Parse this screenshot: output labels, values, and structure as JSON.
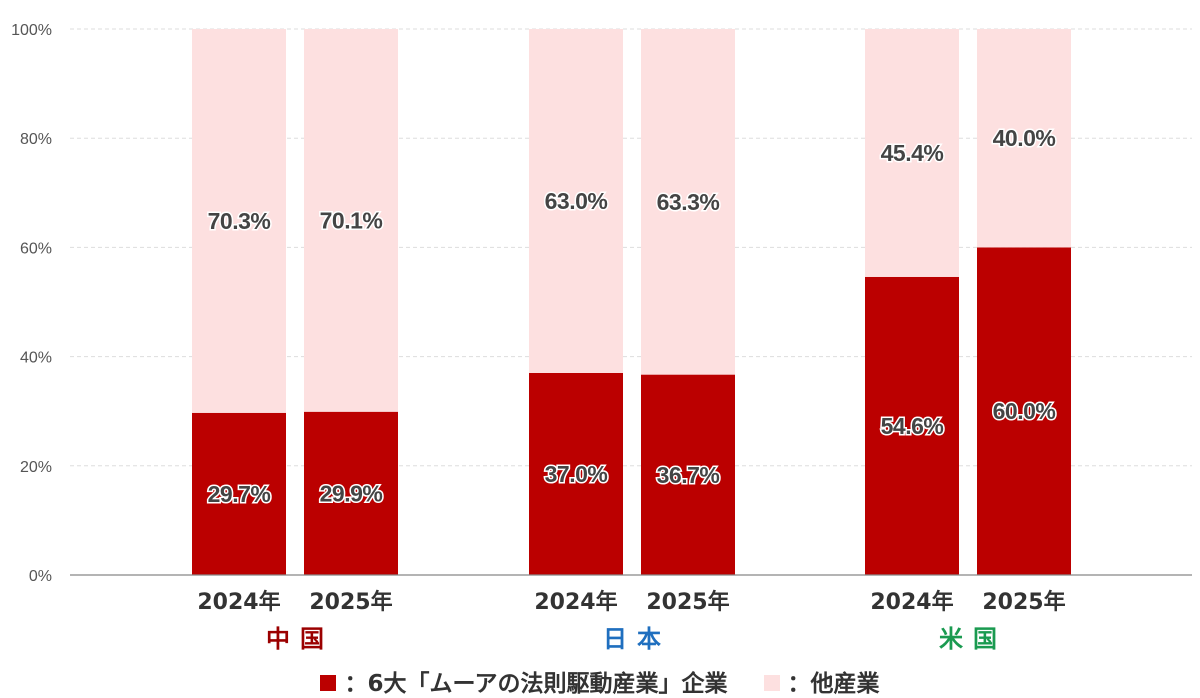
{
  "colors": {
    "primary": "#bb0000",
    "other": "#fde0e0",
    "china": "#9b0000",
    "japan": "#1f6fbf",
    "us": "#1a9a50"
  },
  "legend": {
    "primary_label": "：6大「ムーアの法則駆動産業」企業",
    "other_label": "：他産業"
  },
  "chart_data": {
    "type": "bar",
    "stacked": true,
    "y_axis": {
      "range": [
        0,
        100
      ],
      "ticks": [
        "0%",
        "20%",
        "40%",
        "60%",
        "80%",
        "100%"
      ],
      "grid": true
    },
    "groups": [
      {
        "name": "中国",
        "color_key": "china",
        "categories": [
          "2024年",
          "2025年"
        ]
      },
      {
        "name": "日本",
        "color_key": "japan",
        "categories": [
          "2024年",
          "2025年"
        ]
      },
      {
        "name": "米国",
        "color_key": "us",
        "categories": [
          "2024年",
          "2025年"
        ]
      }
    ],
    "series": [
      {
        "color_key": "primary",
        "values": [
          29.7,
          29.9,
          37.0,
          36.7,
          54.6,
          60.0
        ],
        "labels": [
          "29.7%",
          "29.9%",
          "37.0%",
          "36.7%",
          "54.6%",
          "60.0%"
        ]
      },
      {
        "color_key": "other",
        "values": [
          70.3,
          70.1,
          63.0,
          63.3,
          45.4,
          40.0
        ],
        "labels": [
          "70.3%",
          "70.1%",
          "63.0%",
          "63.3%",
          "45.4%",
          "40.0%"
        ]
      }
    ],
    "legend_position": "bottom"
  }
}
